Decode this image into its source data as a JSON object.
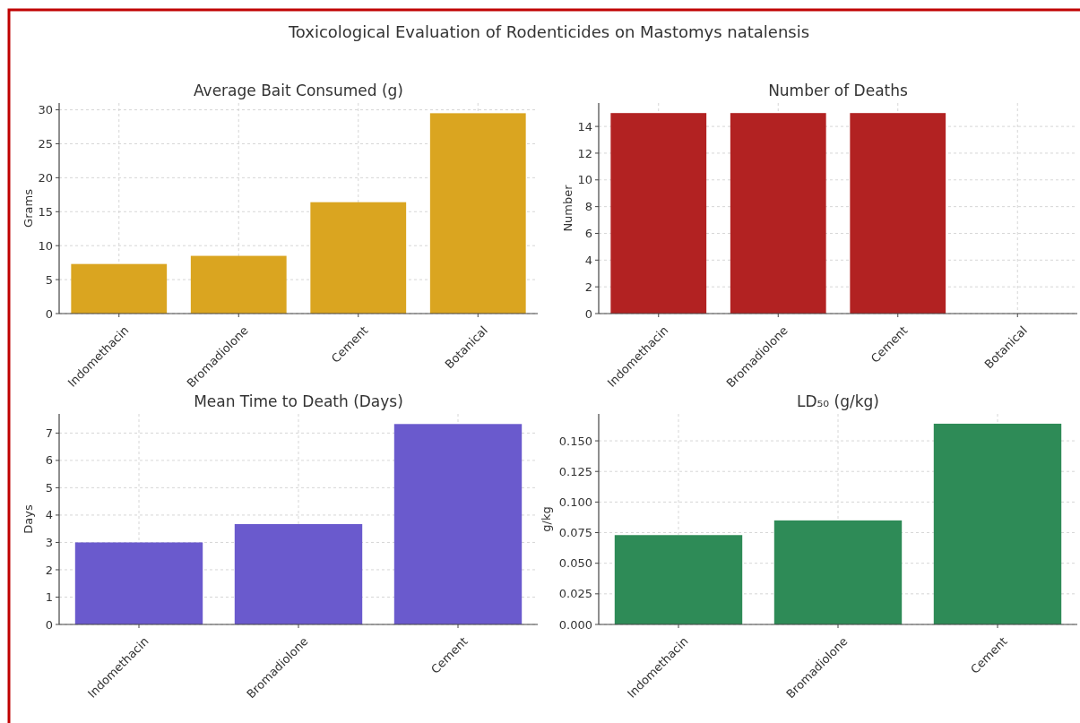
{
  "chart_data": [
    {
      "type": "other",
      "title": "Toxicological Evaluation of Rodenticides on Mastomys natalensis"
    },
    {
      "type": "bar",
      "title": "Average Bait Consumed (g)",
      "ylabel": "Grams",
      "categories": [
        "Indomethacin",
        "Bromadiolone",
        "Cement",
        "Botanical"
      ],
      "values": [
        7.3,
        8.5,
        16.4,
        29.5
      ],
      "color": "#daa520",
      "ylim": [
        0,
        31
      ],
      "yticks": [
        0,
        5,
        10,
        15,
        20,
        25,
        30
      ],
      "grid": true
    },
    {
      "type": "bar",
      "title": "Number of Deaths",
      "ylabel": "Number",
      "categories": [
        "Indomethacin",
        "Bromadiolone",
        "Cement",
        "Botanical"
      ],
      "values": [
        15,
        15,
        15,
        0
      ],
      "color": "#b22222",
      "ylim": [
        0,
        15.75
      ],
      "yticks": [
        0,
        2,
        4,
        6,
        8,
        10,
        12,
        14
      ],
      "grid": true
    },
    {
      "type": "bar",
      "title": "Mean Time to Death (Days)",
      "ylabel": "Days",
      "categories": [
        "Indomethacin",
        "Bromadiolone",
        "Cement"
      ],
      "values": [
        3.0,
        3.67,
        7.33
      ],
      "color": "#6a5acd",
      "ylim": [
        0,
        7.7
      ],
      "yticks": [
        0,
        1,
        2,
        3,
        4,
        5,
        6,
        7
      ],
      "grid": true
    },
    {
      "type": "bar",
      "title": "LD₅₀ (g/kg)",
      "ylabel": "g/kg",
      "categories": [
        "Indomethacin",
        "Bromadiolone",
        "Cement"
      ],
      "values": [
        0.073,
        0.085,
        0.164
      ],
      "color": "#2e8b57",
      "ylim": [
        0,
        0.172
      ],
      "yticks": [
        {
          "value": 0,
          "label": "0.000"
        },
        {
          "value": 0.025,
          "label": "0.025"
        },
        {
          "value": 0.05,
          "label": "0.050"
        },
        {
          "value": 0.075,
          "label": "0.075"
        },
        {
          "value": 0.1,
          "label": "0.100"
        },
        {
          "value": 0.125,
          "label": "0.125"
        },
        {
          "value": 0.15,
          "label": "0.150"
        }
      ],
      "grid": true
    }
  ]
}
